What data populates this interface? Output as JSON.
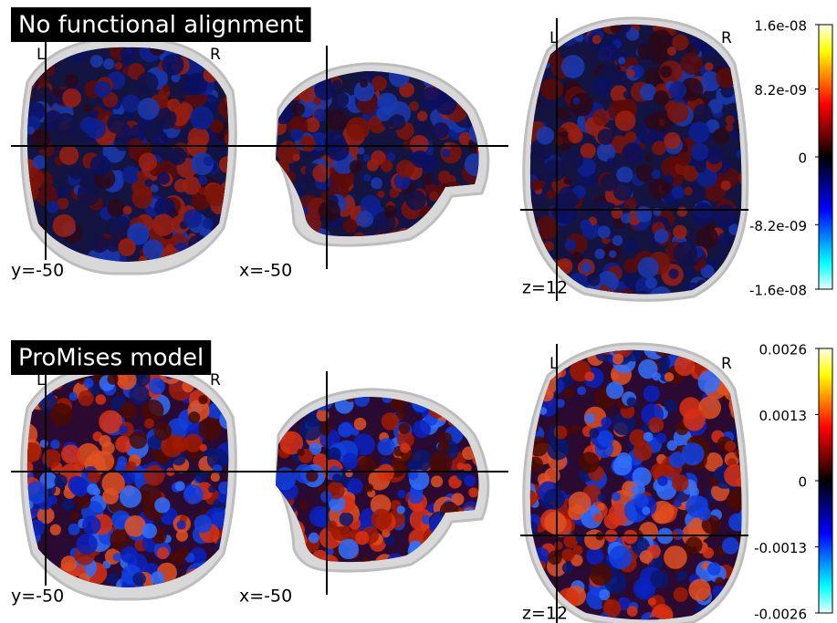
{
  "chart_data": [
    {
      "type": "stat_map",
      "title": "No functional alignment",
      "left_label": "L",
      "right_label": "R",
      "slices": [
        "y=-50",
        "x=-50",
        "z=12"
      ],
      "colormap": "cold_hot",
      "ylim": [
        -1.6e-08,
        1.6e-08
      ],
      "yticks": [
        {
          "value": 1.6e-08,
          "label": "1.6e-08"
        },
        {
          "value": 8.2e-09,
          "label": "8.2e-09"
        },
        0,
        {
          "value": -8.2e-09,
          "label": "-8.2e-09"
        },
        {
          "value": -1.6e-08,
          "label": "-1.6e-08"
        }
      ]
    },
    {
      "type": "stat_map",
      "title": "ProMises model",
      "left_label": "L",
      "right_label": "R",
      "slices": [
        "y=-50",
        "x=-50",
        "z=12"
      ],
      "colormap": "cold_hot",
      "ylim": [
        -0.0026,
        0.0026
      ],
      "yticks": [
        0.0026,
        0.0013,
        0,
        -0.0013,
        -0.0026
      ]
    }
  ]
}
